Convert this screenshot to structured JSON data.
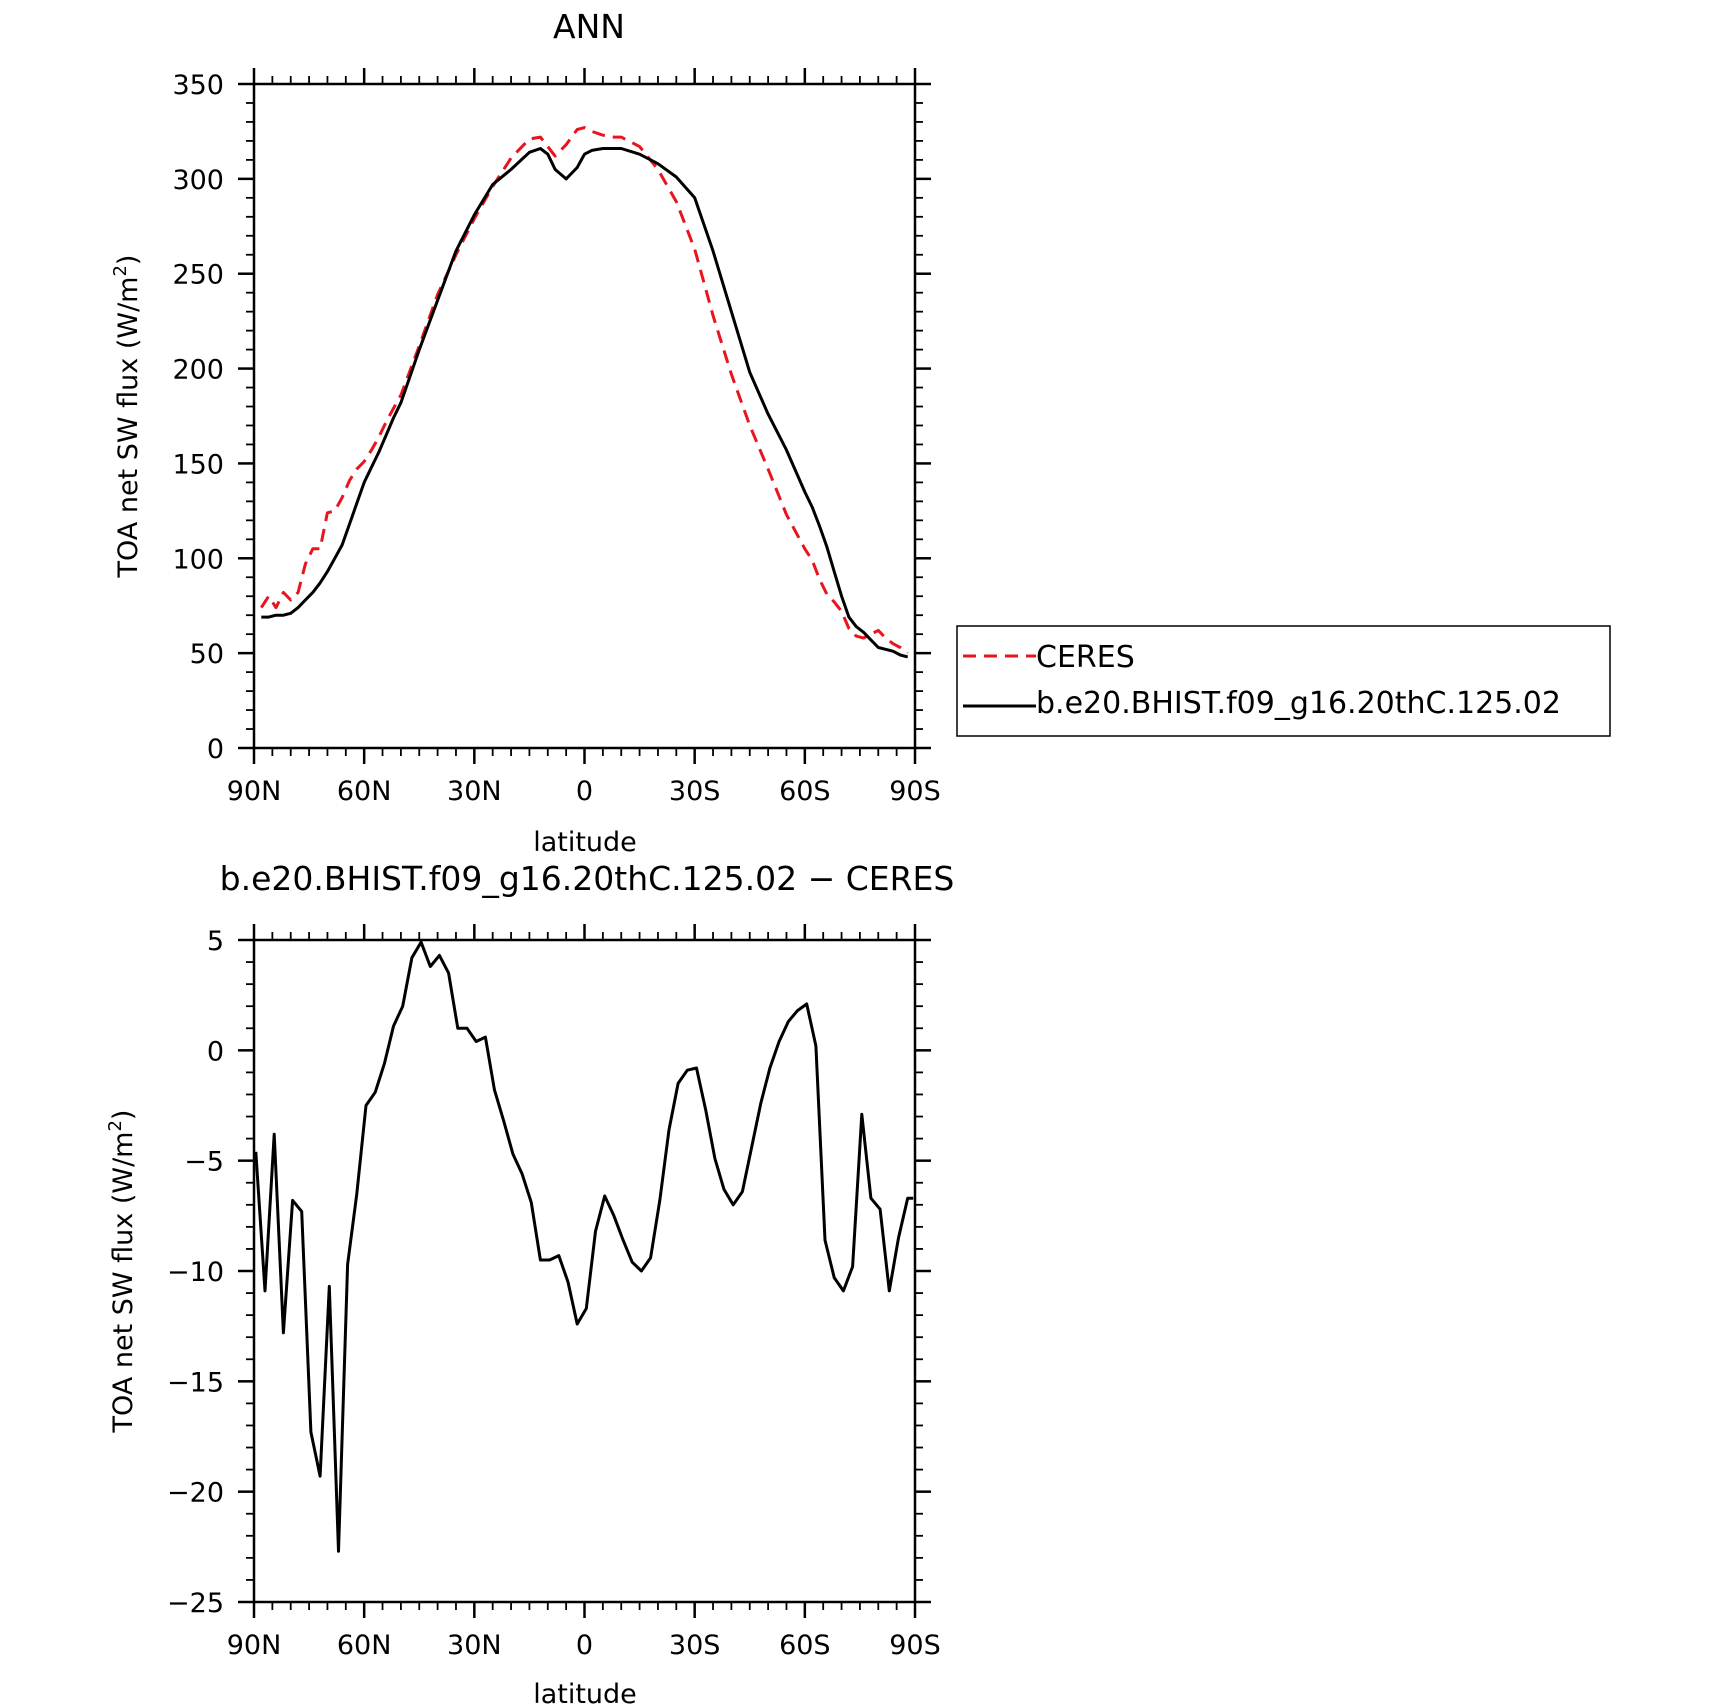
{
  "chart_data": [
    {
      "type": "line",
      "title": "ANN",
      "xlabel": "latitude",
      "ylabel": "TOA net SW flux (W/m",
      "ylabel_sup": "2",
      "ylabel_close": ")",
      "xlim": [
        90,
        -90
      ],
      "ylim": [
        0,
        350
      ],
      "x_ticks": [
        {
          "value": 90,
          "label": "90N"
        },
        {
          "value": 60,
          "label": "60N"
        },
        {
          "value": 30,
          "label": "30N"
        },
        {
          "value": 0,
          "label": "0"
        },
        {
          "value": -30,
          "label": "30S"
        },
        {
          "value": -60,
          "label": "60S"
        },
        {
          "value": -90,
          "label": "90S"
        }
      ],
      "y_ticks": [
        {
          "value": 0,
          "label": "0"
        },
        {
          "value": 50,
          "label": "50"
        },
        {
          "value": 100,
          "label": "100"
        },
        {
          "value": 150,
          "label": "150"
        },
        {
          "value": 200,
          "label": "200"
        },
        {
          "value": 250,
          "label": "250"
        },
        {
          "value": 300,
          "label": "300"
        },
        {
          "value": 350,
          "label": "350"
        }
      ],
      "legend_position": "right",
      "series": [
        {
          "name": "CERES",
          "color": "#e8141e",
          "dash": true,
          "x": [
            88,
            86,
            84,
            82,
            80,
            78,
            76,
            74,
            72,
            70,
            68,
            66,
            64,
            62,
            60,
            58,
            56,
            54,
            52,
            50,
            45,
            40,
            35,
            30,
            25,
            20,
            15,
            12,
            10,
            8,
            5,
            2,
            0,
            -2,
            -5,
            -8,
            -10,
            -15,
            -20,
            -25,
            -30,
            -35,
            -40,
            -45,
            -50,
            -55,
            -60,
            -62,
            -64,
            -66,
            -68,
            -70,
            -72,
            -74,
            -76,
            -78,
            -80,
            -82,
            -84,
            -86,
            -88
          ],
          "y": [
            74,
            80,
            74,
            82,
            78,
            82,
            97,
            105,
            105,
            124,
            125,
            132,
            141,
            147,
            151,
            157,
            164,
            172,
            179,
            186,
            212,
            239,
            260,
            279,
            296,
            311,
            321,
            322,
            317,
            312,
            318,
            326,
            327,
            325,
            323,
            322,
            322,
            317,
            305,
            288,
            263,
            228,
            197,
            170,
            147,
            123,
            105,
            99,
            89,
            81,
            77,
            72,
            63,
            59,
            58,
            60,
            62,
            58,
            55,
            53,
            50
          ]
        },
        {
          "name": "b.e20.BHIST.f09_g16.20thC.125.02",
          "color": "#000000",
          "dash": false,
          "x": [
            88,
            86,
            84,
            82,
            80,
            78,
            76,
            74,
            72,
            70,
            68,
            66,
            64,
            62,
            60,
            58,
            56,
            54,
            52,
            50,
            45,
            40,
            35,
            30,
            25,
            20,
            15,
            12,
            10,
            8,
            5,
            2,
            0,
            -2,
            -5,
            -8,
            -10,
            -15,
            -20,
            -25,
            -30,
            -35,
            -40,
            -45,
            -50,
            -55,
            -60,
            -62,
            -64,
            -66,
            -68,
            -70,
            -72,
            -74,
            -76,
            -78,
            -80,
            -82,
            -84,
            -86,
            -88
          ],
          "y": [
            69,
            69,
            70,
            70,
            71,
            74,
            78,
            82,
            87,
            93,
            100,
            107,
            118,
            129,
            140,
            148,
            156,
            165,
            174,
            182,
            210,
            236,
            262,
            281,
            297,
            305,
            314,
            316,
            313,
            305,
            300,
            306,
            313,
            315,
            316,
            316,
            316,
            313,
            308,
            301,
            290,
            262,
            230,
            198,
            176,
            157,
            135,
            127,
            117,
            106,
            93,
            80,
            69,
            64,
            61,
            57,
            53,
            52,
            51,
            49,
            48
          ]
        }
      ]
    },
    {
      "type": "line",
      "title": "b.e20.BHIST.f09_g16.20thC.125.02 − CERES",
      "xlabel": "latitude",
      "ylabel": "TOA net SW flux (W/m",
      "ylabel_sup": "2",
      "ylabel_close": ")",
      "xlim": [
        90,
        -90
      ],
      "ylim": [
        -25,
        5
      ],
      "x_ticks": [
        {
          "value": 90,
          "label": "90N"
        },
        {
          "value": 60,
          "label": "60N"
        },
        {
          "value": 30,
          "label": "30N"
        },
        {
          "value": 0,
          "label": "0"
        },
        {
          "value": -30,
          "label": "30S"
        },
        {
          "value": -60,
          "label": "60S"
        },
        {
          "value": -90,
          "label": "90S"
        }
      ],
      "y_ticks": [
        {
          "value": -25,
          "label": "−25"
        },
        {
          "value": -20,
          "label": "−20"
        },
        {
          "value": -15,
          "label": "−15"
        },
        {
          "value": -10,
          "label": "−10"
        },
        {
          "value": -5,
          "label": "−5"
        },
        {
          "value": 0,
          "label": "0"
        },
        {
          "value": 5,
          "label": "5"
        }
      ],
      "series": [
        {
          "color": "#000000",
          "dash": false,
          "x": [
            89.5,
            87,
            84.5,
            82,
            79.5,
            77,
            74.5,
            72,
            69.5,
            67,
            64.5,
            62,
            59.5,
            57,
            54.5,
            52,
            49.5,
            47,
            44.5,
            42,
            39.5,
            37,
            34.5,
            32,
            29.5,
            27,
            24.5,
            22,
            19.5,
            17,
            14.5,
            12,
            9.5,
            7,
            4.5,
            2,
            -0.5,
            -3,
            -5.5,
            -8,
            -10.5,
            -13,
            -15.5,
            -18,
            -20.5,
            -23,
            -25.5,
            -28,
            -30.5,
            -33,
            -35.5,
            -38,
            -40.5,
            -43,
            -45.5,
            -48,
            -50.5,
            -53,
            -55.5,
            -58,
            -60.5,
            -63,
            -65.5,
            -68,
            -70.5,
            -73,
            -75.5,
            -78,
            -80.5,
            -83,
            -85.5,
            -88,
            -89.5
          ],
          "y": [
            -4.6,
            -10.9,
            -3.8,
            -12.8,
            -6.8,
            -7.3,
            -17.3,
            -19.3,
            -10.7,
            -22.7,
            -9.7,
            -6.5,
            -2.5,
            -1.9,
            -0.6,
            1.1,
            2.0,
            4.2,
            4.9,
            3.8,
            4.3,
            3.5,
            1.0,
            1.0,
            0.4,
            0.6,
            -1.8,
            -3.2,
            -4.7,
            -5.6,
            -6.9,
            -9.5,
            -9.5,
            -9.3,
            -10.5,
            -12.4,
            -11.7,
            -8.2,
            -6.6,
            -7.5,
            -8.6,
            -9.6,
            -10.0,
            -9.4,
            -6.8,
            -3.6,
            -1.5,
            -0.9,
            -0.8,
            -2.7,
            -4.9,
            -6.3,
            -7.0,
            -6.4,
            -4.4,
            -2.4,
            -0.8,
            0.4,
            1.3,
            1.8,
            2.1,
            0.2,
            -8.6,
            -10.3,
            -10.9,
            -9.8,
            -2.9,
            -6.7,
            -7.2,
            -10.9,
            -8.5,
            -6.7,
            -6.7
          ]
        }
      ]
    }
  ]
}
